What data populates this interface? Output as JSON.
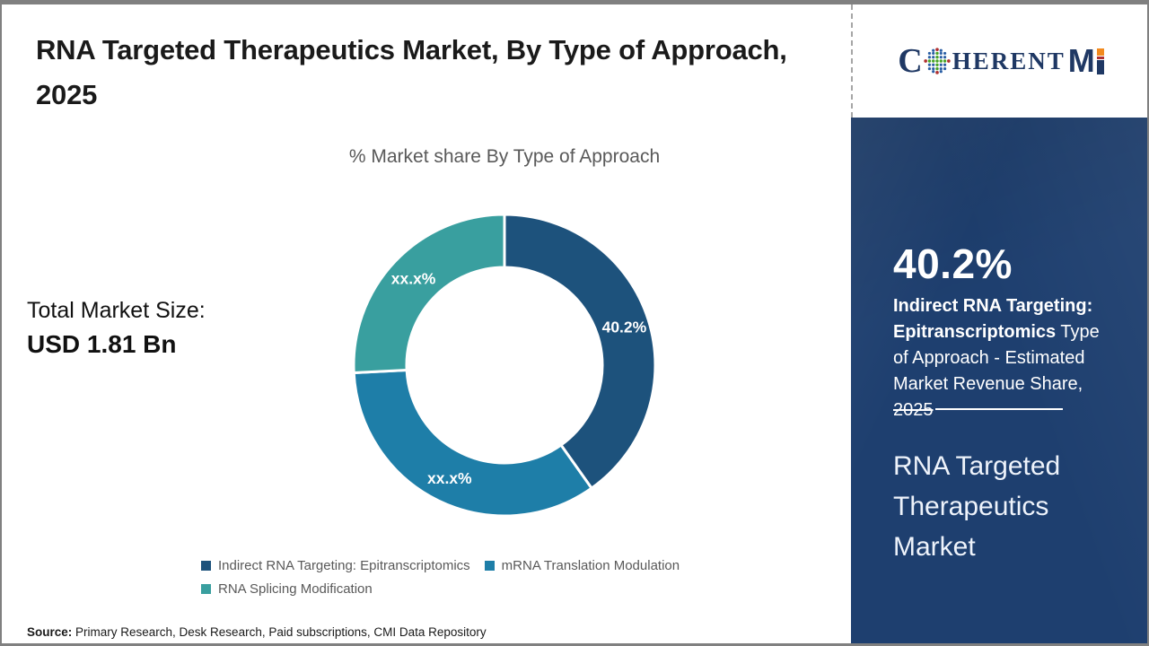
{
  "header": {
    "title": "RNA Targeted Therapeutics Market, By Type of Approach, 2025"
  },
  "logo": {
    "c": "C",
    "herent": "HERENT",
    "m": "M"
  },
  "left_panel": {
    "total_label": "Total Market Size:",
    "total_value": "USD 1.81 Bn"
  },
  "chart_data": {
    "type": "pie",
    "variant": "donut",
    "title": "% Market share By Type of Approach",
    "unit": "%",
    "categories": [
      "Indirect RNA Targeting: Epitranscriptomics",
      "mRNA Translation Modulation",
      "RNA Splicing Modification"
    ],
    "values": [
      40.2,
      34.0,
      25.8
    ],
    "labels": [
      "40.2%",
      "xx.x%",
      "xx.x%"
    ],
    "colors": [
      "#1d527c",
      "#1e7ea8",
      "#399f9f"
    ],
    "start_angle_deg": 0,
    "direction": "clockwise",
    "inner_radius_ratio": 0.65,
    "legend_position": "bottom"
  },
  "sidebar": {
    "highlight_value": "40.2%",
    "highlight_bold": "Indirect RNA Targeting: Epitranscriptomics",
    "highlight_rest": " Type of Approach - Estimated Market Revenue Share, ",
    "highlight_year": "2025",
    "product_title": "RNA Targeted Therapeutics Market",
    "background_color": "#1e3f6f"
  },
  "footer": {
    "source_label": "Source:",
    "source_text": " Primary Research, Desk Research, Paid subscriptions, CMI Data Repository"
  }
}
